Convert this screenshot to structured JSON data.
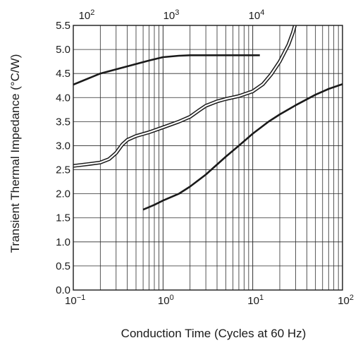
{
  "chart_data": {
    "type": "line",
    "title": "",
    "xlabel": "Conduction Time (Cycles at 60 Hz)",
    "ylabel": "Transient Thermal Impedance  (°C/W)",
    "x_scale": "log",
    "xlim": [
      0.1,
      100
    ],
    "ylim": [
      0.0,
      5.5
    ],
    "grid": true,
    "legend": "none",
    "x_ticks": [
      {
        "base": "10",
        "exp": "−1"
      },
      {
        "base": "10",
        "exp": "0"
      },
      {
        "base": "10",
        "exp": "1"
      },
      {
        "base": "10",
        "exp": "2"
      }
    ],
    "top_ticks": [
      {
        "base": "10",
        "exp": "2"
      },
      {
        "base": "10",
        "exp": "3"
      },
      {
        "base": "10",
        "exp": "4"
      }
    ],
    "y_ticks": [
      "0.0",
      "0.5",
      "1.0",
      "1.5",
      "2.0",
      "2.5",
      "3.0",
      "3.5",
      "4.0",
      "4.5",
      "5.0",
      "5.5"
    ],
    "series": [
      {
        "style": "solid",
        "x": [
          0.1,
          0.2,
          0.4,
          0.7,
          1.0,
          1.5,
          2.0,
          3.0,
          5.0,
          7.0,
          10.0,
          12.0
        ],
        "y": [
          4.27,
          4.5,
          4.65,
          4.77,
          4.84,
          4.87,
          4.88,
          4.88,
          4.88,
          4.88,
          4.88,
          4.88
        ]
      },
      {
        "style": "double",
        "x": [
          0.1,
          0.15,
          0.2,
          0.25,
          0.3,
          0.35,
          0.4,
          0.5,
          0.7,
          1.0,
          1.5,
          2.0,
          2.5,
          3.0,
          4.0,
          5.0,
          7.0,
          10.0,
          13.0,
          16.0,
          20.0,
          25.0,
          28.0,
          30.0,
          31.0,
          32.0
        ],
        "y": [
          2.58,
          2.62,
          2.65,
          2.72,
          2.85,
          3.02,
          3.12,
          3.2,
          3.28,
          3.38,
          3.5,
          3.6,
          3.73,
          3.83,
          3.92,
          3.97,
          4.03,
          4.13,
          4.28,
          4.48,
          4.75,
          5.1,
          5.35,
          5.55,
          5.7,
          5.85
        ]
      },
      {
        "style": "solid",
        "x": [
          0.6,
          0.8,
          1.0,
          1.5,
          2.0,
          3.0,
          5.0,
          7.0,
          10.0,
          15.0,
          20.0,
          30.0,
          50.0,
          70.0,
          100.0
        ],
        "y": [
          1.67,
          1.77,
          1.86,
          2.0,
          2.15,
          2.4,
          2.77,
          3.0,
          3.25,
          3.5,
          3.65,
          3.84,
          4.06,
          4.18,
          4.28
        ]
      }
    ]
  }
}
